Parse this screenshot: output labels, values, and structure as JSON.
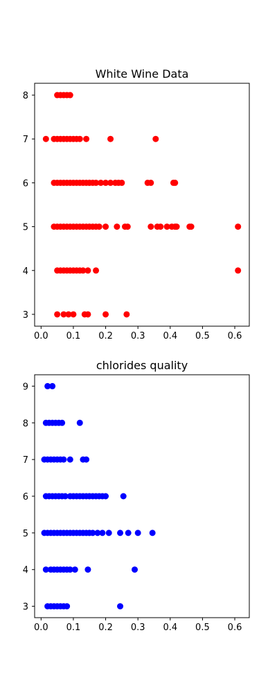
{
  "chart_data": [
    {
      "type": "scatter",
      "title": "White Wine Data",
      "xlabel": "",
      "ylabel": "",
      "xlim": [
        -0.02,
        0.645
      ],
      "ylim": [
        2.73,
        8.27
      ],
      "xticks": [
        "0.0",
        "0.1",
        "0.2",
        "0.3",
        "0.4",
        "0.5",
        "0.6"
      ],
      "yticks": [
        "3",
        "4",
        "5",
        "6",
        "7",
        "8"
      ],
      "grid": false,
      "colors": {
        "points": "#ff0000"
      },
      "series": [
        {
          "points": [
            [
              0.05,
              3
            ],
            [
              0.07,
              3
            ],
            [
              0.085,
              3
            ],
            [
              0.1,
              3
            ],
            [
              0.135,
              3
            ],
            [
              0.145,
              3
            ],
            [
              0.2,
              3
            ],
            [
              0.265,
              3
            ],
            [
              0.05,
              4
            ],
            [
              0.06,
              4
            ],
            [
              0.07,
              4
            ],
            [
              0.08,
              4
            ],
            [
              0.09,
              4
            ],
            [
              0.1,
              4
            ],
            [
              0.11,
              4
            ],
            [
              0.12,
              4
            ],
            [
              0.13,
              4
            ],
            [
              0.145,
              4
            ],
            [
              0.17,
              4
            ],
            [
              0.61,
              4
            ],
            [
              0.04,
              5
            ],
            [
              0.05,
              5
            ],
            [
              0.06,
              5
            ],
            [
              0.07,
              5
            ],
            [
              0.08,
              5
            ],
            [
              0.09,
              5
            ],
            [
              0.1,
              5
            ],
            [
              0.11,
              5
            ],
            [
              0.12,
              5
            ],
            [
              0.13,
              5
            ],
            [
              0.14,
              5
            ],
            [
              0.15,
              5
            ],
            [
              0.16,
              5
            ],
            [
              0.17,
              5
            ],
            [
              0.18,
              5
            ],
            [
              0.2,
              5
            ],
            [
              0.235,
              5
            ],
            [
              0.26,
              5
            ],
            [
              0.268,
              5
            ],
            [
              0.34,
              5
            ],
            [
              0.36,
              5
            ],
            [
              0.37,
              5
            ],
            [
              0.39,
              5
            ],
            [
              0.405,
              5
            ],
            [
              0.415,
              5
            ],
            [
              0.42,
              5
            ],
            [
              0.46,
              5
            ],
            [
              0.465,
              5
            ],
            [
              0.61,
              5
            ],
            [
              0.04,
              6
            ],
            [
              0.05,
              6
            ],
            [
              0.06,
              6
            ],
            [
              0.07,
              6
            ],
            [
              0.08,
              6
            ],
            [
              0.09,
              6
            ],
            [
              0.1,
              6
            ],
            [
              0.11,
              6
            ],
            [
              0.12,
              6
            ],
            [
              0.13,
              6
            ],
            [
              0.14,
              6
            ],
            [
              0.15,
              6
            ],
            [
              0.16,
              6
            ],
            [
              0.17,
              6
            ],
            [
              0.185,
              6
            ],
            [
              0.2,
              6
            ],
            [
              0.215,
              6
            ],
            [
              0.23,
              6
            ],
            [
              0.24,
              6
            ],
            [
              0.25,
              6
            ],
            [
              0.33,
              6
            ],
            [
              0.34,
              6
            ],
            [
              0.41,
              6
            ],
            [
              0.415,
              6
            ],
            [
              0.015,
              7
            ],
            [
              0.04,
              7
            ],
            [
              0.05,
              7
            ],
            [
              0.06,
              7
            ],
            [
              0.07,
              7
            ],
            [
              0.08,
              7
            ],
            [
              0.09,
              7
            ],
            [
              0.1,
              7
            ],
            [
              0.11,
              7
            ],
            [
              0.12,
              7
            ],
            [
              0.14,
              7
            ],
            [
              0.215,
              7
            ],
            [
              0.355,
              7
            ],
            [
              0.05,
              8
            ],
            [
              0.06,
              8
            ],
            [
              0.07,
              8
            ],
            [
              0.08,
              8
            ],
            [
              0.09,
              8
            ]
          ]
        }
      ]
    },
    {
      "type": "scatter",
      "title": "chlorides quality",
      "xlabel": "",
      "ylabel": "",
      "xlim": [
        -0.02,
        0.645
      ],
      "ylim": [
        2.69,
        9.31
      ],
      "xticks": [
        "0.0",
        "0.1",
        "0.2",
        "0.3",
        "0.4",
        "0.5",
        "0.6"
      ],
      "yticks": [
        "3",
        "4",
        "5",
        "6",
        "7",
        "8",
        "9"
      ],
      "grid": false,
      "colors": {
        "points": "#0000ff"
      },
      "series": [
        {
          "points": [
            [
              0.02,
              3
            ],
            [
              0.03,
              3
            ],
            [
              0.04,
              3
            ],
            [
              0.05,
              3
            ],
            [
              0.06,
              3
            ],
            [
              0.07,
              3
            ],
            [
              0.08,
              3
            ],
            [
              0.245,
              3
            ],
            [
              0.015,
              4
            ],
            [
              0.03,
              4
            ],
            [
              0.04,
              4
            ],
            [
              0.05,
              4
            ],
            [
              0.06,
              4
            ],
            [
              0.07,
              4
            ],
            [
              0.08,
              4
            ],
            [
              0.09,
              4
            ],
            [
              0.105,
              4
            ],
            [
              0.145,
              4
            ],
            [
              0.29,
              4
            ],
            [
              0.01,
              5
            ],
            [
              0.02,
              5
            ],
            [
              0.03,
              5
            ],
            [
              0.04,
              5
            ],
            [
              0.05,
              5
            ],
            [
              0.06,
              5
            ],
            [
              0.07,
              5
            ],
            [
              0.08,
              5
            ],
            [
              0.09,
              5
            ],
            [
              0.1,
              5
            ],
            [
              0.11,
              5
            ],
            [
              0.12,
              5
            ],
            [
              0.13,
              5
            ],
            [
              0.14,
              5
            ],
            [
              0.15,
              5
            ],
            [
              0.16,
              5
            ],
            [
              0.175,
              5
            ],
            [
              0.19,
              5
            ],
            [
              0.21,
              5
            ],
            [
              0.245,
              5
            ],
            [
              0.27,
              5
            ],
            [
              0.3,
              5
            ],
            [
              0.345,
              5
            ],
            [
              0.015,
              6
            ],
            [
              0.025,
              6
            ],
            [
              0.035,
              6
            ],
            [
              0.045,
              6
            ],
            [
              0.055,
              6
            ],
            [
              0.065,
              6
            ],
            [
              0.075,
              6
            ],
            [
              0.09,
              6
            ],
            [
              0.1,
              6
            ],
            [
              0.11,
              6
            ],
            [
              0.12,
              6
            ],
            [
              0.13,
              6
            ],
            [
              0.14,
              6
            ],
            [
              0.15,
              6
            ],
            [
              0.16,
              6
            ],
            [
              0.17,
              6
            ],
            [
              0.18,
              6
            ],
            [
              0.19,
              6
            ],
            [
              0.2,
              6
            ],
            [
              0.255,
              6
            ],
            [
              0.01,
              7
            ],
            [
              0.02,
              7
            ],
            [
              0.03,
              7
            ],
            [
              0.04,
              7
            ],
            [
              0.05,
              7
            ],
            [
              0.06,
              7
            ],
            [
              0.07,
              7
            ],
            [
              0.09,
              7
            ],
            [
              0.13,
              7
            ],
            [
              0.14,
              7
            ],
            [
              0.015,
              8
            ],
            [
              0.025,
              8
            ],
            [
              0.035,
              8
            ],
            [
              0.045,
              8
            ],
            [
              0.055,
              8
            ],
            [
              0.065,
              8
            ],
            [
              0.12,
              8
            ],
            [
              0.02,
              9
            ],
            [
              0.035,
              9
            ]
          ]
        }
      ]
    }
  ]
}
